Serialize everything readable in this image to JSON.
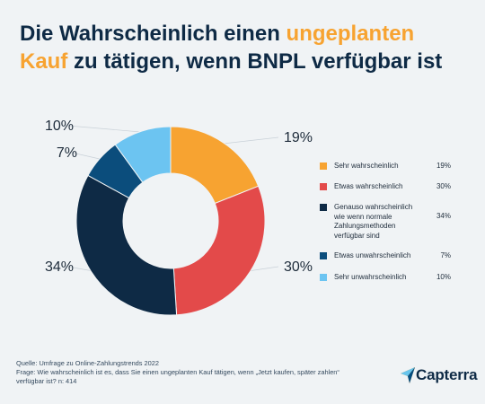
{
  "title": {
    "part1": "Die Wahrscheinlich einen ",
    "highlight1": "ungeplanten",
    "part2": "Kauf",
    "part3": " zu tätigen, wenn BNPL verfügbar ist"
  },
  "colors": {
    "accent": "#f7a331",
    "title": "#0e2a45",
    "background": "#f0f3f5"
  },
  "chart_data": {
    "type": "pie",
    "subtype": "donut",
    "categories": [
      "Sehr wahrscheinlich",
      "Etwas wahrscheinlich",
      "Genauso wahrscheinlich wie wenn normale Zahlungsmethoden verfügbar sind",
      "Etwas unwahrscheinlich",
      "Sehr unwahrscheinlich"
    ],
    "values": [
      19,
      30,
      34,
      7,
      10
    ],
    "labels": [
      "19%",
      "30%",
      "34%",
      "7%",
      "10%"
    ],
    "colors": [
      "#f7a331",
      "#e34a4a",
      "#0e2a45",
      "#0b4d7c",
      "#6cc4f1"
    ],
    "legend_position": "right"
  },
  "legend": {
    "items": [
      {
        "lines": [
          "Sehr wahrscheinlich"
        ],
        "value": "19%"
      },
      {
        "lines": [
          "Etwas wahrscheinlich"
        ],
        "value": "30%"
      },
      {
        "lines": [
          "Genauso wahrscheinlich",
          "wie wenn normale",
          "Zahlungsmethoden",
          "verfügbar sind"
        ],
        "value": "34%"
      },
      {
        "lines": [
          "Etwas unwahrscheinlich"
        ],
        "value": "7%"
      },
      {
        "lines": [
          "Sehr unwahrscheinlich"
        ],
        "value": "10%"
      }
    ]
  },
  "footer": {
    "source": "Quelle: Umfrage zu Online-Zahlungstrends 2022",
    "question_line1": "Frage: Wie wahrscheinlich ist es, dass Sie einen ungeplanten Kauf tätigen, wenn „Jetzt kaufen, später zahlen“",
    "question_line2": "verfügbar ist? n: 414"
  },
  "brand": {
    "name": "Capterra",
    "logo_icon": "capterra-arrow-icon"
  }
}
